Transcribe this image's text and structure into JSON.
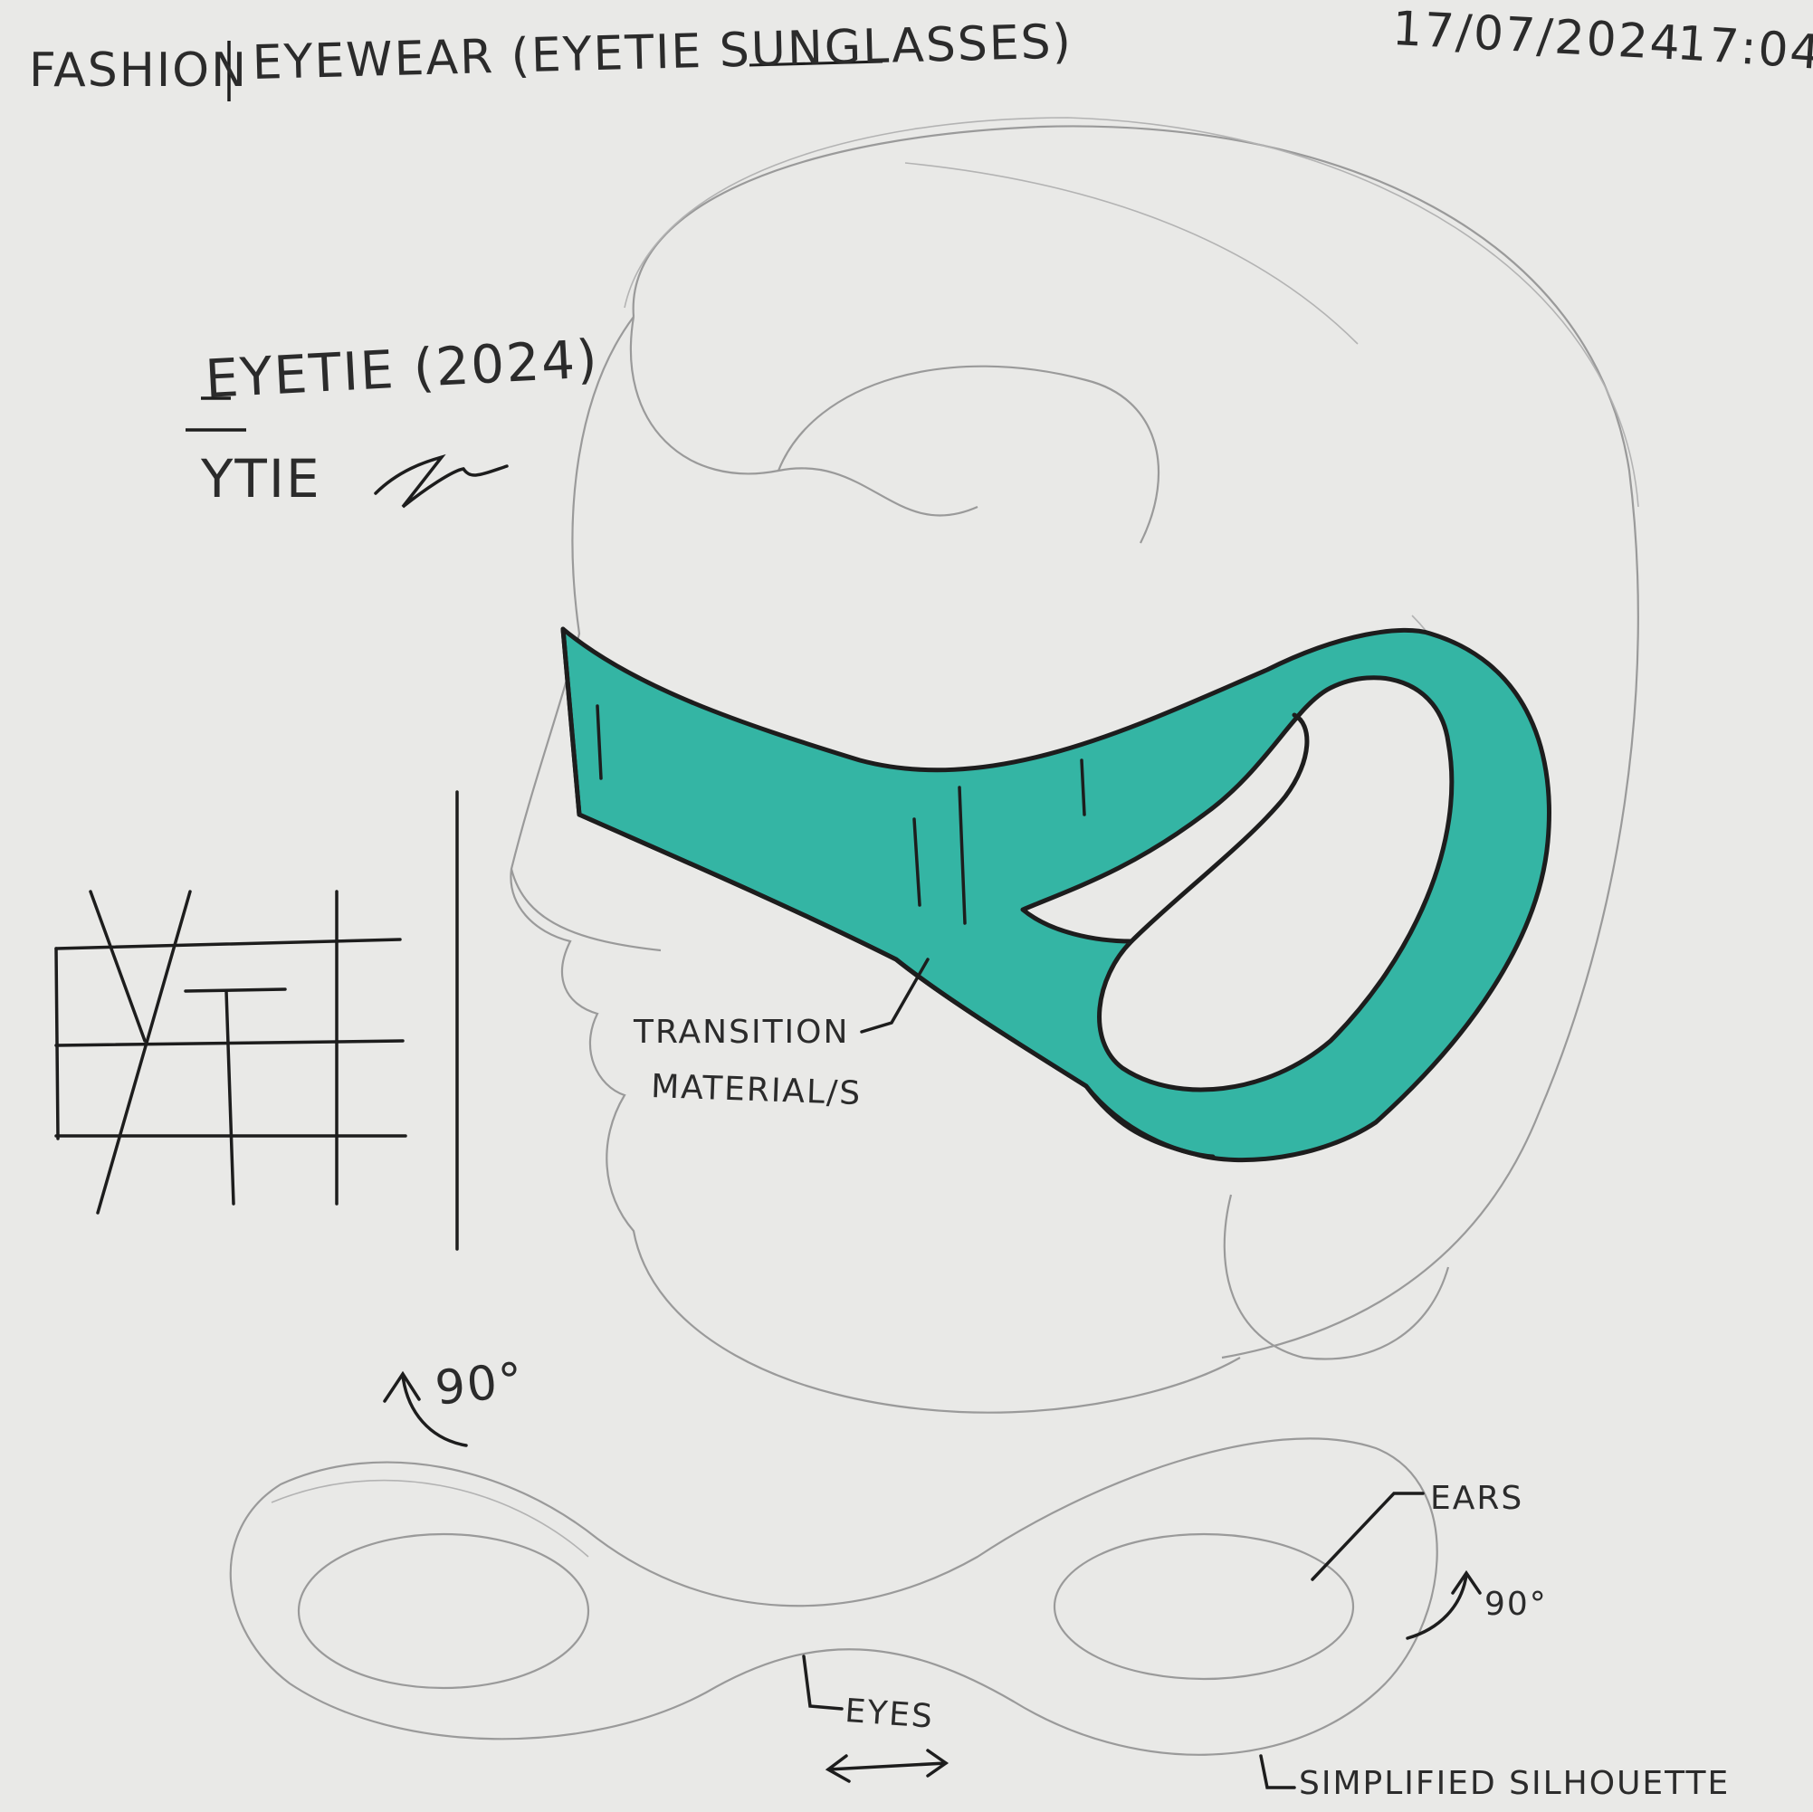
{
  "header": {
    "category": "FASHION",
    "separator": "|",
    "title": "EYEWEAR (EYETIE SUNGLASSES)",
    "date": "17/07/2024",
    "time": "17:04"
  },
  "brand": {
    "name": "EYETIE (2024)",
    "short": "YTIE"
  },
  "annotations": {
    "transition": "TRANSITION",
    "materials": "MATERIAL/S",
    "ears": "EARS",
    "eyes": "EYES",
    "silhouette": "SIMPLIFIED SILHOUETTE",
    "rotate_left": "90°",
    "rotate_right": "90°"
  },
  "colors": {
    "paper": "#e9e9e7",
    "frame_fill": "#34b5a4",
    "ink": "#1d1d1d",
    "pencil": "#9a9a9a"
  }
}
